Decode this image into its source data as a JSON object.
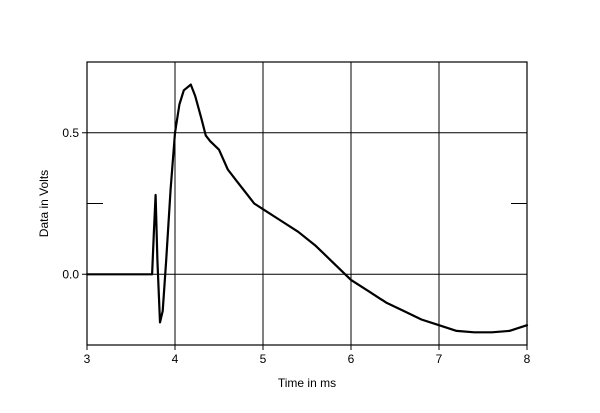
{
  "chart_data": {
    "type": "line",
    "xlabel": "Time in ms",
    "ylabel": "Data in Volts",
    "xlim": [
      3,
      8
    ],
    "ylim": [
      -0.25,
      0.75
    ],
    "grid": true,
    "x_ticks": [
      {
        "value": 3,
        "label": "3"
      },
      {
        "value": 4,
        "label": "4"
      },
      {
        "value": 5,
        "label": "5"
      },
      {
        "value": 6,
        "label": "6"
      },
      {
        "value": 7,
        "label": "7"
      },
      {
        "value": 8,
        "label": "8"
      }
    ],
    "y_ticks": [
      {
        "value": 0.0,
        "label": "0.0"
      },
      {
        "value": 0.5,
        "label": "0.5"
      }
    ],
    "y_minor_ticks": [
      0.25
    ],
    "series": [
      {
        "color": "#000000",
        "points": [
          [
            3.0,
            0.0
          ],
          [
            3.5,
            0.0
          ],
          [
            3.74,
            0.0
          ],
          [
            3.76,
            0.15
          ],
          [
            3.78,
            0.28
          ],
          [
            3.8,
            0.05
          ],
          [
            3.83,
            -0.17
          ],
          [
            3.86,
            -0.13
          ],
          [
            3.9,
            0.05
          ],
          [
            3.95,
            0.3
          ],
          [
            4.0,
            0.5
          ],
          [
            4.05,
            0.6
          ],
          [
            4.1,
            0.65
          ],
          [
            4.18,
            0.67
          ],
          [
            4.23,
            0.63
          ],
          [
            4.3,
            0.55
          ],
          [
            4.35,
            0.49
          ],
          [
            4.4,
            0.47
          ],
          [
            4.5,
            0.44
          ],
          [
            4.6,
            0.37
          ],
          [
            4.7,
            0.33
          ],
          [
            4.8,
            0.29
          ],
          [
            4.9,
            0.25
          ],
          [
            5.0,
            0.23
          ],
          [
            5.2,
            0.19
          ],
          [
            5.4,
            0.15
          ],
          [
            5.6,
            0.1
          ],
          [
            5.8,
            0.04
          ],
          [
            6.0,
            -0.02
          ],
          [
            6.2,
            -0.06
          ],
          [
            6.4,
            -0.1
          ],
          [
            6.6,
            -0.13
          ],
          [
            6.8,
            -0.16
          ],
          [
            7.0,
            -0.18
          ],
          [
            7.2,
            -0.2
          ],
          [
            7.4,
            -0.205
          ],
          [
            7.6,
            -0.205
          ],
          [
            7.8,
            -0.2
          ],
          [
            8.0,
            -0.18
          ]
        ]
      }
    ]
  }
}
